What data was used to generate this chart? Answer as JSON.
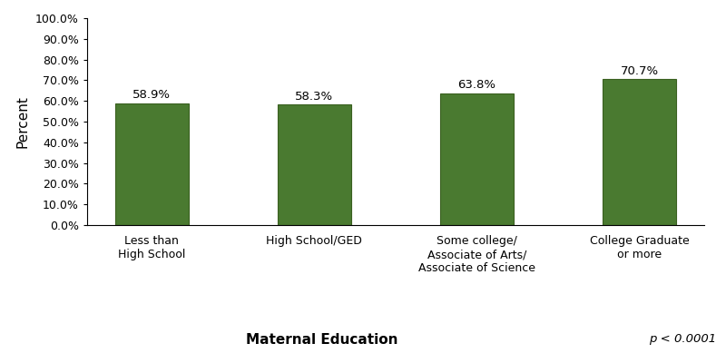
{
  "categories": [
    "Less than\nHigh School",
    "High School/GED",
    "Some college/\nAssociate of Arts/\nAssociate of Science",
    "College Graduate\nor more"
  ],
  "values": [
    58.9,
    58.3,
    63.8,
    70.7
  ],
  "bar_color": "#4a7a30",
  "bar_edge_color": "#3a6020",
  "ylabel": "Percent",
  "xlabel": "Maternal Education",
  "p_value_text": "p < 0.0001",
  "ylim": [
    0,
    100
  ],
  "yticks": [
    0,
    10,
    20,
    30,
    40,
    50,
    60,
    70,
    80,
    90,
    100
  ],
  "ytick_labels": [
    "0.0%",
    "10.0%",
    "20.0%",
    "30.0%",
    "40.0%",
    "50.0%",
    "60.0%",
    "70.0%",
    "80.0%",
    "90.0%",
    "100.0%"
  ],
  "value_labels": [
    "58.9%",
    "58.3%",
    "63.8%",
    "70.7%"
  ],
  "bar_width": 0.45,
  "background_color": "#ffffff",
  "label_fontsize": 9,
  "axis_label_fontsize": 11,
  "tick_fontsize": 9,
  "value_label_fontsize": 9.5
}
